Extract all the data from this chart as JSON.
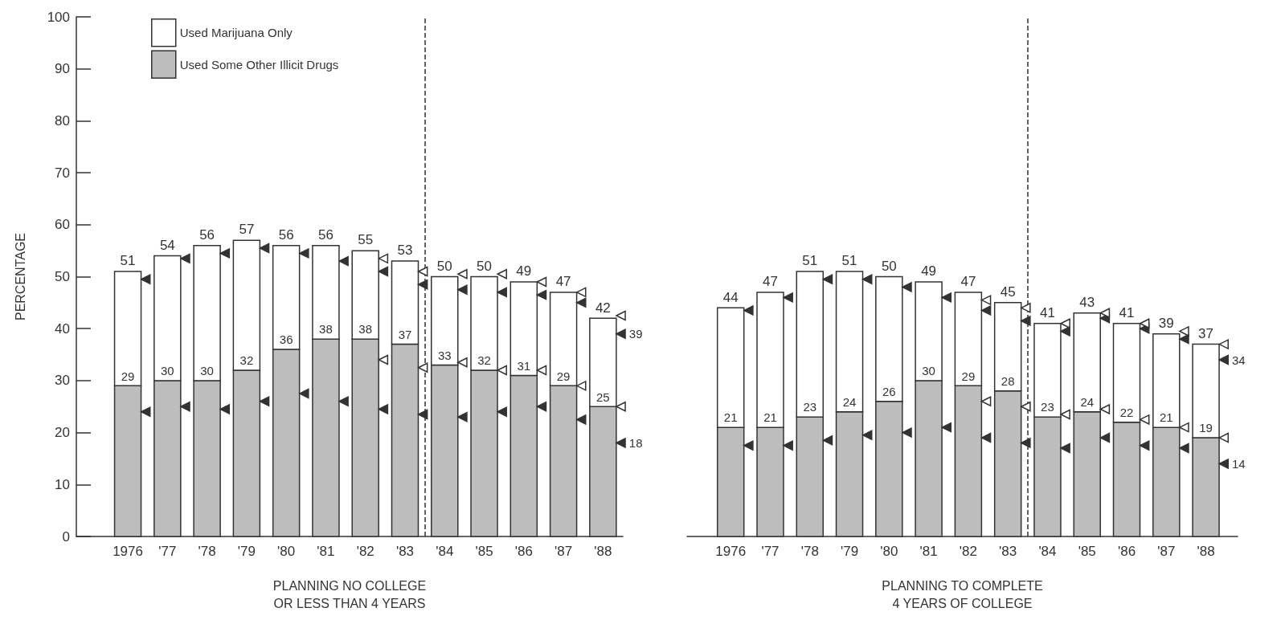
{
  "chart_data": [
    {
      "type": "bar",
      "stacked": true,
      "xlabel": "PLANNING NO COLLEGE\nOR LESS THAN 4 YEARS",
      "ylabel": "PERCENTAGE",
      "x": [
        1976,
        1977,
        1978,
        1979,
        1980,
        1981,
        1982,
        1983,
        1984,
        1985,
        1986,
        1987,
        1988
      ],
      "xlim": [
        1974.7,
        1988.5
      ],
      "xticks": [
        {
          "value": 1976,
          "label": "1976"
        },
        {
          "value": 1977,
          "label": "'77"
        },
        {
          "value": 1978,
          "label": "'78"
        },
        {
          "value": 1979,
          "label": "'79"
        },
        {
          "value": 1980,
          "label": "'80"
        },
        {
          "value": 1981,
          "label": "'81"
        },
        {
          "value": 1982,
          "label": "'82"
        },
        {
          "value": 1983,
          "label": "'83"
        },
        {
          "value": 1984,
          "label": "'84"
        },
        {
          "value": 1985,
          "label": "'85"
        },
        {
          "value": 1986,
          "label": "'86"
        },
        {
          "value": 1987,
          "label": "'87"
        },
        {
          "value": 1988,
          "label": "'88"
        }
      ],
      "ylim": [
        0,
        100
      ],
      "yticks": [
        0,
        10,
        20,
        30,
        40,
        50,
        60,
        70,
        80,
        90,
        100
      ],
      "grid": false,
      "legend": "top left",
      "marker": "triangle",
      "series": [
        {
          "name": "Used Some Other Illicit Drugs",
          "color": "#bdbdbd",
          "values": [
            29,
            30,
            30,
            32,
            36,
            38,
            38,
            37,
            33,
            32,
            31,
            29,
            25
          ],
          "value_labels": [
            "29",
            "30",
            "30",
            "32",
            "36",
            "38",
            "38",
            "37",
            "33",
            "32",
            "31",
            "29",
            "25"
          ]
        },
        {
          "name": "Used Marijuana Only",
          "color": "#ffffff",
          "values": [
            22,
            24,
            26,
            25,
            20,
            18,
            17,
            16,
            17,
            18,
            18,
            18,
            17
          ]
        },
        {
          "type": "scatter",
          "color": "#333333",
          "x": [
            1976.45,
            1977.45,
            1978.45,
            1979.45,
            1980.45,
            1981.45,
            1982.45,
            1983.45,
            1984.45,
            1985.45,
            1986.45,
            1987.45,
            1988.45
          ],
          "values": [
            49.5,
            53.5,
            54.5,
            55.5,
            54.5,
            53,
            51,
            48.5,
            47.5,
            47,
            46.5,
            45,
            39
          ],
          "value_labels": [
            null,
            null,
            null,
            null,
            null,
            null,
            null,
            null,
            null,
            null,
            null,
            null,
            "39"
          ]
        },
        {
          "type": "scatter",
          "color": "#333333",
          "x": [
            1976.45,
            1977.45,
            1978.45,
            1979.45,
            1980.45,
            1981.45,
            1982.45,
            1983.45,
            1984.45,
            1985.45,
            1986.45,
            1987.45,
            1988.45
          ],
          "values": [
            24,
            25,
            24.5,
            26,
            27.5,
            26,
            24.5,
            23.5,
            23,
            24,
            25,
            22.5,
            18
          ],
          "value_labels": [
            null,
            null,
            null,
            null,
            null,
            null,
            null,
            null,
            null,
            null,
            null,
            null,
            "18"
          ]
        },
        {
          "type": "scatter",
          "color": "#ffffff",
          "x": [
            1982.45,
            1983.45,
            1984.45,
            1985.45,
            1986.45,
            1987.45,
            1988.45
          ],
          "values": [
            53.5,
            51,
            50.5,
            50.5,
            49,
            47,
            42.5
          ]
        },
        {
          "type": "scatter",
          "color": "#ffffff",
          "x": [
            1982.45,
            1983.45,
            1984.45,
            1985.45,
            1986.45,
            1987.45,
            1988.45
          ],
          "values": [
            34,
            32.5,
            33.5,
            32,
            32,
            29,
            25
          ]
        }
      ],
      "totals": [
        "51",
        "54",
        "56",
        "57",
        "56",
        "56",
        "55",
        "53",
        "50",
        "50",
        "49",
        "47",
        "42"
      ],
      "ref_lines": [
        {
          "axis": "x",
          "value": 1983.5,
          "line_style": "dashed"
        }
      ]
    },
    {
      "type": "bar",
      "stacked": true,
      "xlabel": "PLANNING TO COMPLETE\n4 YEARS OF COLLEGE",
      "x": [
        1976,
        1977,
        1978,
        1979,
        1980,
        1981,
        1982,
        1983,
        1984,
        1985,
        1986,
        1987,
        1988
      ],
      "xlim": [
        1974.9,
        1988.8
      ],
      "xticks": [
        {
          "value": 1976,
          "label": "1976"
        },
        {
          "value": 1977,
          "label": "'77"
        },
        {
          "value": 1978,
          "label": "'78"
        },
        {
          "value": 1979,
          "label": "'79"
        },
        {
          "value": 1980,
          "label": "'80"
        },
        {
          "value": 1981,
          "label": "'81"
        },
        {
          "value": 1982,
          "label": "'82"
        },
        {
          "value": 1983,
          "label": "'83"
        },
        {
          "value": 1984,
          "label": "'84"
        },
        {
          "value": 1985,
          "label": "'85"
        },
        {
          "value": 1986,
          "label": "'86"
        },
        {
          "value": 1987,
          "label": "'87"
        },
        {
          "value": 1988,
          "label": "'88"
        }
      ],
      "ylim": [
        0,
        100
      ],
      "yticks": [
        0,
        10,
        20,
        30,
        40,
        50,
        60,
        70,
        80,
        90,
        100
      ],
      "tick_labels": "x",
      "grid": false,
      "marker": "triangle",
      "series": [
        {
          "color": "#bdbdbd",
          "values": [
            21,
            21,
            23,
            24,
            26,
            30,
            29,
            28,
            23,
            24,
            22,
            21,
            19
          ],
          "value_labels": [
            "21",
            "21",
            "23",
            "24",
            "26",
            "30",
            "29",
            "28",
            "23",
            "24",
            "22",
            "21",
            "19"
          ]
        },
        {
          "color": "#ffffff",
          "values": [
            23,
            26,
            28,
            27,
            24,
            19,
            18,
            17,
            18,
            19,
            19,
            18,
            18
          ]
        },
        {
          "type": "scatter",
          "color": "#333333",
          "x": [
            1976.45,
            1977.45,
            1978.45,
            1979.45,
            1980.45,
            1981.45,
            1982.45,
            1983.45,
            1984.45,
            1985.45,
            1986.45,
            1987.45,
            1988.45
          ],
          "values": [
            43.5,
            46,
            49.5,
            49.5,
            48,
            46,
            43.5,
            41.5,
            39.5,
            42,
            40,
            38,
            34
          ],
          "value_labels": [
            null,
            null,
            null,
            null,
            null,
            null,
            null,
            null,
            null,
            null,
            null,
            null,
            "34"
          ]
        },
        {
          "type": "scatter",
          "color": "#333333",
          "x": [
            1976.45,
            1977.45,
            1978.45,
            1979.45,
            1980.45,
            1981.45,
            1982.45,
            1983.45,
            1984.45,
            1985.45,
            1986.45,
            1987.45,
            1988.45
          ],
          "values": [
            17.5,
            17.5,
            18.5,
            19.5,
            20,
            21,
            19,
            18,
            17,
            19,
            17.5,
            17,
            14
          ],
          "value_labels": [
            null,
            null,
            null,
            null,
            null,
            null,
            null,
            null,
            null,
            null,
            null,
            null,
            "14"
          ]
        },
        {
          "type": "scatter",
          "color": "#ffffff",
          "x": [
            1982.45,
            1983.45,
            1984.45,
            1985.45,
            1986.45,
            1987.45,
            1988.45
          ],
          "values": [
            45.5,
            44,
            41,
            43,
            41,
            39.5,
            37
          ]
        },
        {
          "type": "scatter",
          "color": "#ffffff",
          "x": [
            1982.45,
            1983.45,
            1984.45,
            1985.45,
            1986.45,
            1987.45,
            1988.45
          ],
          "values": [
            26,
            25,
            23.5,
            24.5,
            22.5,
            21,
            19
          ]
        }
      ],
      "totals": [
        "44",
        "47",
        "51",
        "51",
        "50",
        "49",
        "47",
        "45",
        "41",
        "43",
        "41",
        "39",
        "37"
      ],
      "ref_lines": [
        {
          "axis": "x",
          "value": 1983.5,
          "line_style": "dashed"
        }
      ]
    }
  ]
}
